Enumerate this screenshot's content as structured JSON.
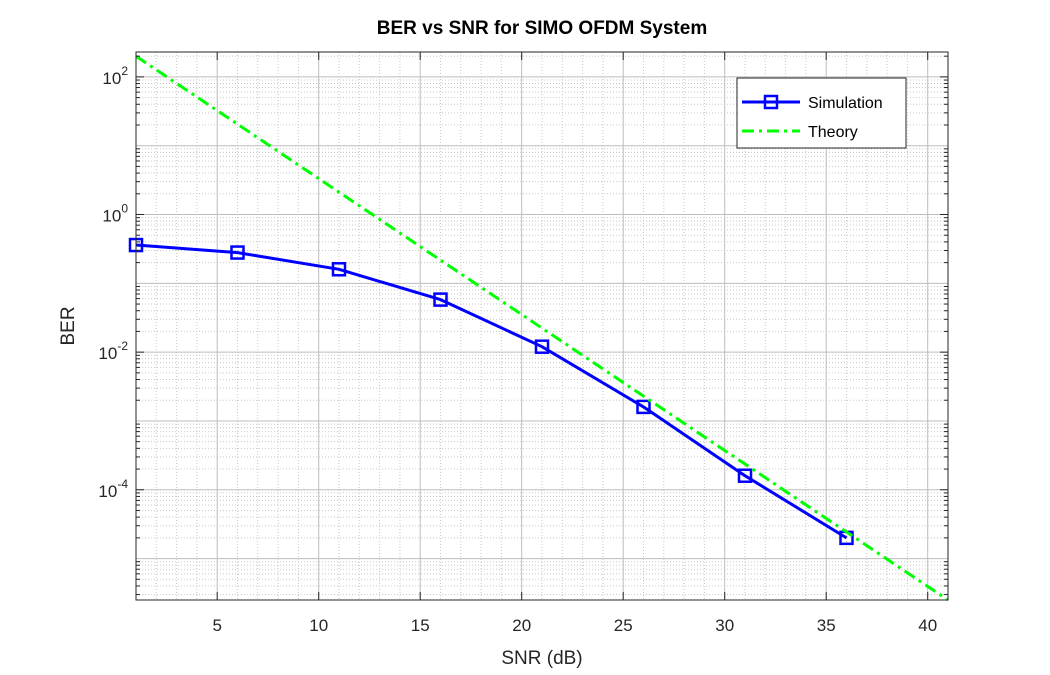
{
  "chart_data": {
    "type": "line",
    "title": "BER vs SNR for SIMO OFDM System",
    "xlabel": "SNR (dB)",
    "ylabel": "BER",
    "xlim": [
      1,
      41
    ],
    "ylim": [
      2.5e-06,
      230
    ],
    "yscale": "log",
    "grid": true,
    "minor_grid": true,
    "xticks": [
      5,
      10,
      15,
      20,
      25,
      30,
      35,
      40
    ],
    "yticks": [
      {
        "base": "10",
        "exp": "-4",
        "value": 0.0001
      },
      {
        "base": "10",
        "exp": "-2",
        "value": 0.01
      },
      {
        "base": "10",
        "exp": "0",
        "value": 1
      },
      {
        "base": "10",
        "exp": "2",
        "value": 100
      }
    ],
    "legend_position": "top-right",
    "series": [
      {
        "name": "Simulation",
        "color": "#0000ff",
        "style": "solid",
        "marker": "square",
        "x": [
          1,
          6,
          11,
          16,
          21,
          26,
          31,
          36
        ],
        "y": [
          0.36,
          0.28,
          0.16,
          0.058,
          0.012,
          0.0016,
          0.00016,
          2e-05
        ]
      },
      {
        "name": "Theory",
        "color": "#00ff00",
        "style": "dashdot",
        "marker": "none",
        "x": [
          1,
          41
        ],
        "y": [
          200,
          2.5e-06
        ]
      }
    ]
  }
}
